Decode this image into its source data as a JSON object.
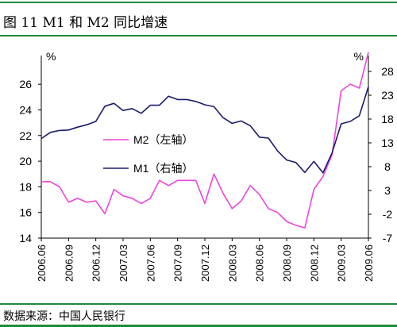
{
  "figure": {
    "title": "图 11 M1 和 M2 同比增速",
    "source": "数据来源：中国人民银行"
  },
  "colors": {
    "m2": "#ee44dd",
    "m1": "#1a1a6e",
    "rule": "#1e8a3c"
  },
  "chart_data": {
    "type": "line",
    "categories": [
      "2006.06",
      "2006.07",
      "2006.08",
      "2006.09",
      "2006.10",
      "2006.11",
      "2006.12",
      "2007.01",
      "2007.02",
      "2007.03",
      "2007.04",
      "2007.05",
      "2007.06",
      "2007.07",
      "2007.08",
      "2007.09",
      "2007.10",
      "2007.11",
      "2007.12",
      "2008.01",
      "2008.02",
      "2008.03",
      "2008.04",
      "2008.05",
      "2008.06",
      "2008.07",
      "2008.08",
      "2008.09",
      "2008.10",
      "2008.11",
      "2008.12",
      "2009.01",
      "2009.02",
      "2009.03",
      "2009.04",
      "2009.05",
      "2009.06"
    ],
    "tick_labels": [
      "2006.06",
      "2006.09",
      "2006.12",
      "2007.03",
      "2007.06",
      "2007.09",
      "2007.12",
      "2008.03",
      "2008.06",
      "2008.09",
      "2008.12",
      "2009.03",
      "2009.06"
    ],
    "left_axis": {
      "unit": "%",
      "ylim": [
        14,
        27
      ],
      "ticks": [
        14,
        16,
        18,
        20,
        22,
        24,
        26
      ]
    },
    "right_axis": {
      "unit": "%",
      "ylim": [
        -7,
        28
      ],
      "ticks": [
        -7,
        -2,
        3,
        8,
        13,
        18,
        23,
        28
      ]
    },
    "series": [
      {
        "name": "M2（左轴）",
        "axis": "left",
        "values": [
          18.4,
          18.4,
          18.0,
          16.8,
          17.1,
          16.8,
          16.9,
          15.9,
          17.8,
          17.3,
          17.1,
          16.7,
          17.1,
          18.5,
          18.1,
          18.5,
          18.5,
          18.5,
          16.7,
          19.0,
          17.5,
          16.3,
          16.9,
          18.1,
          17.4,
          16.3,
          16.0,
          15.3,
          15.0,
          14.8,
          17.8,
          18.8,
          20.5,
          25.5,
          26.0,
          25.7,
          28.5
        ]
      },
      {
        "name": "M1（右轴）",
        "axis": "right",
        "values": [
          13.9,
          15.2,
          15.6,
          15.7,
          16.3,
          16.8,
          17.5,
          20.7,
          21.3,
          19.8,
          20.2,
          19.2,
          20.9,
          20.9,
          22.8,
          22.1,
          22.1,
          21.7,
          21.0,
          20.6,
          18.3,
          17.1,
          17.6,
          16.6,
          14.2,
          14.0,
          11.3,
          9.4,
          8.9,
          6.8,
          9.1,
          6.7,
          10.9,
          17.0,
          17.5,
          18.7,
          24.8
        ]
      }
    ],
    "legend_position": "center-left",
    "grid": false
  }
}
